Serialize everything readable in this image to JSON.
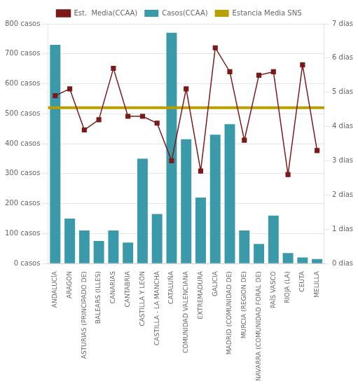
{
  "chart_data": {
    "type": "bar",
    "categories": [
      "ANDALUCÍA",
      "ARAGÓN",
      "ASTURIAS (PRINCIPADO DE)",
      "BALEARS (ILLES)",
      "CANARIAS",
      "CANTABRIA",
      "CASTILLA Y LEÓN",
      "CASTILLA - LA MANCHA",
      "CATALUÑA",
      "COMUNIDAD VALENCIANA",
      "EXTREMADURA",
      "GALICIA",
      "MADRID (COMUNIDAD DE)",
      "MURCIA (REGION DE)",
      "NAVARRA (COMUNIDAD FORAL DE)",
      "PAÍS VASCO",
      "RIOJA (LA)",
      "CEUTA",
      "MELILLA"
    ],
    "series": [
      {
        "name": "Casos(CCAA)",
        "type": "bar",
        "color": "#3a9aaa",
        "values": [
          730,
          150,
          110,
          75,
          110,
          70,
          350,
          165,
          770,
          415,
          220,
          430,
          465,
          110,
          65,
          160,
          35,
          20,
          15
        ]
      },
      {
        "name": "Est.  Media(CCAA)",
        "type": "line",
        "axis": "y2",
        "color": "#7b1a1a",
        "marker": "square",
        "values": [
          4.9,
          5.1,
          3.9,
          4.2,
          5.7,
          4.3,
          4.3,
          4.1,
          3.0,
          5.1,
          2.7,
          6.3,
          5.6,
          3.6,
          5.5,
          5.6,
          2.6,
          5.8,
          3.3
        ]
      },
      {
        "name": "Estancia Media SNS",
        "type": "hline",
        "axis": "y2",
        "color": "#b8a000",
        "value": 4.55
      }
    ],
    "ylim": [
      0,
      800
    ],
    "yticks": [
      {
        "value": 0,
        "label": "0 casos"
      },
      {
        "value": 100,
        "label": "100 casos"
      },
      {
        "value": 200,
        "label": "200 casos"
      },
      {
        "value": 300,
        "label": "300 casos"
      },
      {
        "value": 400,
        "label": "400 casos"
      },
      {
        "value": 500,
        "label": "500 casos"
      },
      {
        "value": 600,
        "label": "600 casos"
      },
      {
        "value": 700,
        "label": "700 casos"
      },
      {
        "value": 800,
        "label": "800 casos"
      }
    ],
    "y2lim": [
      0,
      7
    ],
    "y2ticks": [
      {
        "value": 0,
        "label": "0 dias"
      },
      {
        "value": 1,
        "label": "1 dias"
      },
      {
        "value": 2,
        "label": "2 dias"
      },
      {
        "value": 3,
        "label": "3 dias"
      },
      {
        "value": 4,
        "label": "4 dias"
      },
      {
        "value": 5,
        "label": "5 dias"
      },
      {
        "value": 6,
        "label": "6 dias"
      },
      {
        "value": 7,
        "label": "7 dias"
      }
    ],
    "grid": true,
    "legend": "top"
  }
}
